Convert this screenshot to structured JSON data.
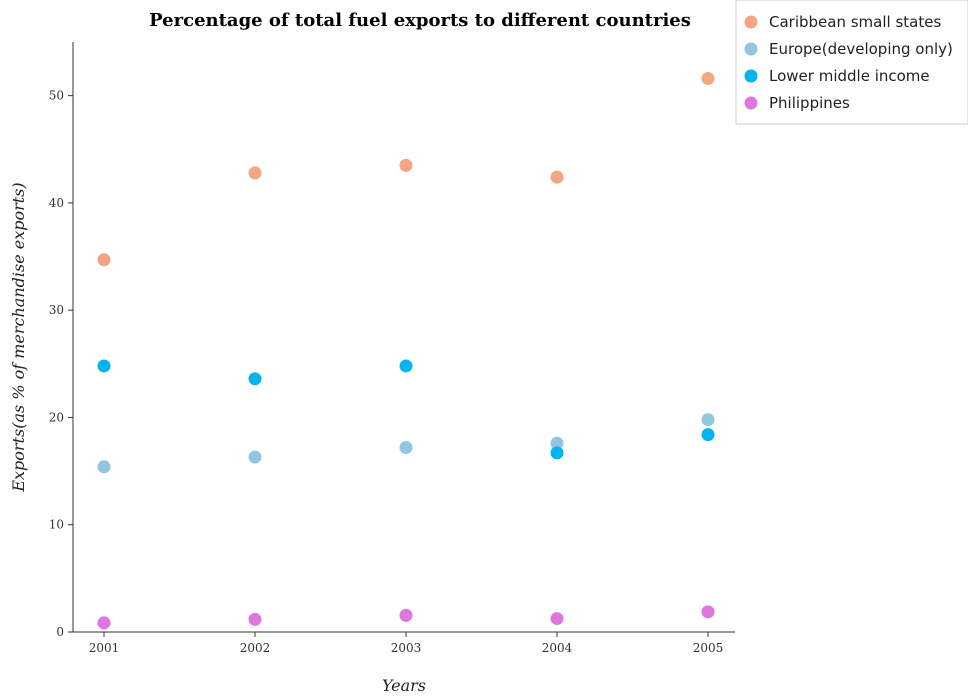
{
  "chart_data": {
    "type": "scatter",
    "title": "Percentage of total fuel exports to different countries",
    "xlabel": "Years",
    "ylabel": "Exports(as % of merchandise exports)",
    "categories": [
      "2001",
      "2002",
      "2003",
      "2004",
      "2005"
    ],
    "yticks": [
      "0",
      "10",
      "20",
      "30",
      "40",
      "50"
    ],
    "ylim": [
      0,
      55
    ],
    "grid": false,
    "legend_position": "top-right",
    "series": [
      {
        "name": "Caribbean small states",
        "color": "#f4a582",
        "values": [
          34.7,
          42.8,
          43.5,
          42.4,
          51.6
        ]
      },
      {
        "name": "Europe(developing only)",
        "color": "#92c5de",
        "values": [
          15.4,
          16.3,
          17.2,
          17.6,
          19.8
        ]
      },
      {
        "name": "Lower middle income",
        "color": "#00b4f0",
        "values": [
          24.8,
          23.6,
          24.8,
          16.7,
          18.4
        ]
      },
      {
        "name": "Philippines",
        "color": "#dd77dd",
        "values": [
          0.85,
          1.18,
          1.55,
          1.25,
          1.88
        ]
      }
    ]
  }
}
